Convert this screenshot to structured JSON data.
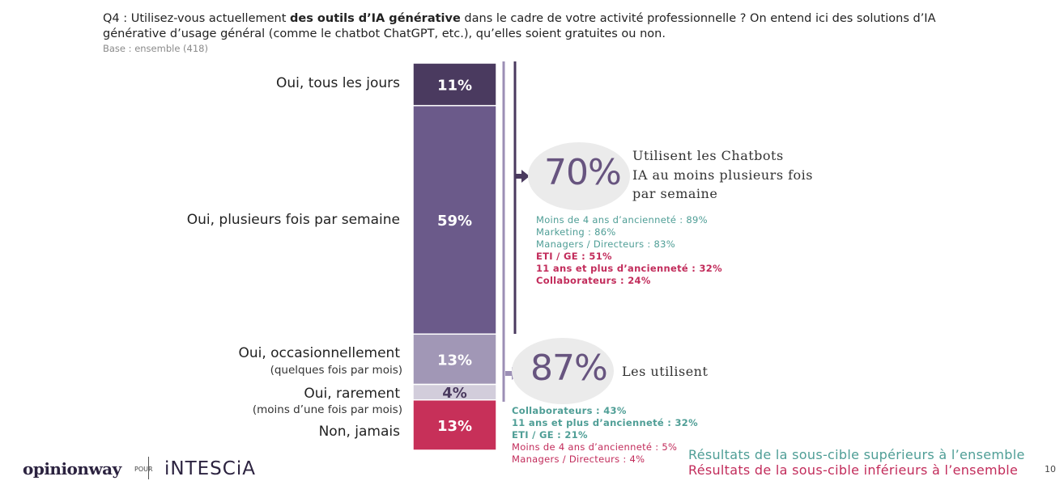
{
  "header": {
    "question_prefix": "Q4 : Utilisez-vous actuellement ",
    "question_bold": "des outils d’IA générative",
    "question_suffix": " dans le cadre de votre activité professionnelle ? On entend ici des solutions d’IA générative d’usage général (comme le chatbot ChatGPT, etc.), qu’elles soient gratuites ou non.",
    "base": "Base : ensemble (418)"
  },
  "chart_data": {
    "type": "bar",
    "orientation": "stacked-vertical",
    "categories": [
      {
        "label": "Oui, tous les jours",
        "sublabel": "",
        "value": 11,
        "value_label": "11%",
        "color": "#4a3a5f"
      },
      {
        "label": "Oui, plusieurs fois par semaine",
        "sublabel": "",
        "value": 59,
        "value_label": "59%",
        "color": "#6b5a8a"
      },
      {
        "label": "Oui, occasionnellement",
        "sublabel": "(quelques fois par mois)",
        "value": 13,
        "value_label": "13%",
        "color": "#a197b6"
      },
      {
        "label": "Oui, rarement",
        "sublabel": "(moins d’une fois par mois)",
        "value": 4,
        "value_label": "4%",
        "color": "#d2cddb"
      },
      {
        "label": "Non, jamais",
        "sublabel": "",
        "value": 13,
        "value_label": "13%",
        "color": "#c73059"
      }
    ]
  },
  "summaries": [
    {
      "value": "70%",
      "text_lines": [
        "Utilisent les Chatbots",
        "IA au moins plusieurs fois",
        "par semaine"
      ],
      "subgroups": [
        {
          "text": "Moins de 4 ans d’ancienneté : 89%",
          "kind": "sup"
        },
        {
          "text": "Marketing : 86%",
          "kind": "sup"
        },
        {
          "text": "Managers / Directeurs : 83%",
          "kind": "sup"
        },
        {
          "text": "ETI / GE : 51%",
          "kind": "inf"
        },
        {
          "text": "11 ans et plus d’ancienneté : 32%",
          "kind": "inf"
        },
        {
          "text": "Collaborateurs : 24%",
          "kind": "inf"
        }
      ]
    },
    {
      "value": "87%",
      "text_lines": [
        "Les utilisent"
      ],
      "subgroups": [
        {
          "text": "Collaborateurs : 43%",
          "kind": "sup-bold"
        },
        {
          "text": "11 ans et plus d’ancienneté : 32%",
          "kind": "sup-bold"
        },
        {
          "text": "ETI / GE : 21%",
          "kind": "sup-bold"
        },
        {
          "text": "Moins de 4 ans d’ancienneté : 5%",
          "kind": "inf-light"
        },
        {
          "text": "Managers / Directeurs : 4%",
          "kind": "inf-light"
        }
      ]
    }
  ],
  "legend": {
    "superior": "Résultats de la sous-cible supérieurs à l’ensemble",
    "inferior": "Résultats de la sous-cible inférieurs à l’ensemble",
    "superior_color": "#4f9e96",
    "inferior_color": "#c22c5b"
  },
  "footer": {
    "brand": "opinionway",
    "pour": "POUR",
    "client": "iNTESCiA",
    "page": "10"
  }
}
